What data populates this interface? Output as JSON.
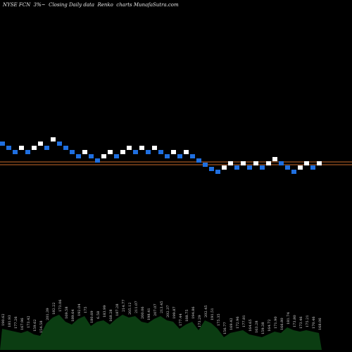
{
  "chart_data": {
    "type": "renko",
    "title": "NYSE FCN  3%~  Closing Daily data  Renko  charts MunafaSutra.com",
    "colors": {
      "background": "#000000",
      "up": "#ffffff",
      "down": "#1f6fe0",
      "line": "#c86a2a",
      "volume": "#0b3d12"
    },
    "reference_lines": [
      230,
      234
    ],
    "bricks": [
      {
        "v": 204,
        "dir": "down"
      },
      {
        "v": 210,
        "dir": "down"
      },
      {
        "v": 216,
        "dir": "down"
      },
      {
        "v": 210,
        "dir": "up"
      },
      {
        "v": 216,
        "dir": "down"
      },
      {
        "v": 210,
        "dir": "up"
      },
      {
        "v": 204,
        "dir": "up"
      },
      {
        "v": 210,
        "dir": "down"
      },
      {
        "v": 198,
        "dir": "up"
      },
      {
        "v": 204,
        "dir": "down"
      },
      {
        "v": 210,
        "dir": "down"
      },
      {
        "v": 216,
        "dir": "down"
      },
      {
        "v": 222,
        "dir": "down"
      },
      {
        "v": 216,
        "dir": "up"
      },
      {
        "v": 222,
        "dir": "down"
      },
      {
        "v": 228,
        "dir": "down"
      },
      {
        "v": 222,
        "dir": "up"
      },
      {
        "v": 216,
        "dir": "up"
      },
      {
        "v": 222,
        "dir": "down"
      },
      {
        "v": 216,
        "dir": "up"
      },
      {
        "v": 210,
        "dir": "up"
      },
      {
        "v": 216,
        "dir": "down"
      },
      {
        "v": 210,
        "dir": "up"
      },
      {
        "v": 216,
        "dir": "down"
      },
      {
        "v": 210,
        "dir": "up"
      },
      {
        "v": 216,
        "dir": "down"
      },
      {
        "v": 222,
        "dir": "down"
      },
      {
        "v": 216,
        "dir": "up"
      },
      {
        "v": 222,
        "dir": "down"
      },
      {
        "v": 216,
        "dir": "up"
      },
      {
        "v": 222,
        "dir": "down"
      },
      {
        "v": 228,
        "dir": "down"
      },
      {
        "v": 234,
        "dir": "down"
      },
      {
        "v": 240,
        "dir": "down"
      },
      {
        "v": 244,
        "dir": "down"
      },
      {
        "v": 238,
        "dir": "up"
      },
      {
        "v": 232,
        "dir": "up"
      },
      {
        "v": 238,
        "dir": "down"
      },
      {
        "v": 232,
        "dir": "up"
      },
      {
        "v": 238,
        "dir": "down"
      },
      {
        "v": 232,
        "dir": "up"
      },
      {
        "v": 238,
        "dir": "down"
      },
      {
        "v": 232,
        "dir": "up"
      },
      {
        "v": 226,
        "dir": "up"
      },
      {
        "v": 232,
        "dir": "down"
      },
      {
        "v": 238,
        "dir": "down"
      },
      {
        "v": 244,
        "dir": "down"
      },
      {
        "v": 238,
        "dir": "up"
      },
      {
        "v": 232,
        "dir": "up"
      },
      {
        "v": 238,
        "dir": "down"
      },
      {
        "v": 232,
        "dir": "up"
      }
    ],
    "volume_labels": [
      "190.62",
      "181.93",
      "177.26",
      "167.96",
      "173.42",
      "159.62",
      "154.58",
      "201.39",
      "182.22",
      "173.06",
      "169.58",
      "189.64",
      "192.04",
      "175",
      "180.69",
      "6.58",
      "183.99",
      "168.28",
      "187.28",
      "214.77",
      "205.12",
      "211.07",
      "200.06",
      "198.41",
      "207.07",
      "213.45",
      "202.37",
      "199.87",
      "177.44",
      "188.75",
      "194.86",
      "173.29",
      "202.45",
      "191.51",
      "175.35",
      "156.77",
      "169.42",
      "172.96",
      "177.81",
      "164.65",
      "163.28",
      "159.38",
      "164.72",
      "171.90",
      "166.80",
      "181.74",
      "173.80",
      "173.46",
      "175.21",
      "170.46",
      "168.06"
    ],
    "volume_bars": [
      30,
      28,
      26,
      24,
      27,
      22,
      20,
      38,
      46,
      50,
      40,
      36,
      44,
      48,
      34,
      40,
      42,
      36,
      44,
      50,
      46,
      48,
      40,
      38,
      44,
      48,
      42,
      40,
      30,
      36,
      40,
      28,
      42,
      38,
      30,
      18,
      24,
      26,
      28,
      22,
      20,
      18,
      22,
      26,
      24,
      32,
      28,
      26,
      28,
      26,
      24
    ]
  }
}
